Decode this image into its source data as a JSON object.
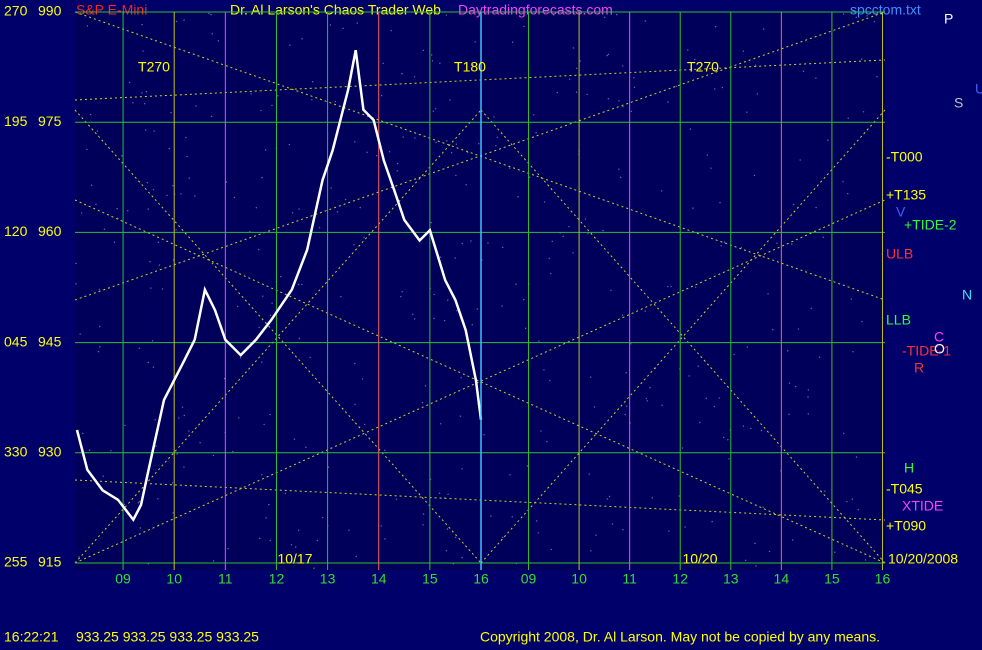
{
  "header": {
    "symbol": "S&P E-Mini",
    "title": "Dr. Al Larson's Chaos Trader Web",
    "site": "Daytradingforecasts.com",
    "file": "spcctom.txt"
  },
  "angle_labels": [
    "255",
    "330",
    "045",
    "120",
    "195",
    "270"
  ],
  "cycle_labels": [
    "T270",
    "T180",
    "T270"
  ],
  "right_labels": [
    "-T000",
    "+T135",
    "+TIDE-2",
    "ULB",
    "LLB",
    "-TIDE-1",
    "H",
    "-T045",
    "XTIDE",
    "+T090"
  ],
  "planet_letters": [
    "P",
    "S",
    "U",
    "N",
    "C",
    "O",
    "R",
    "V"
  ],
  "chart_data": [
    {
      "type": "line",
      "date_label": "10/17",
      "x": [
        8.1,
        8.3,
        8.6,
        8.9,
        9.2,
        9.35,
        9.5,
        9.8,
        10.0,
        10.2,
        10.4,
        10.6,
        10.8,
        11.0,
        11.3,
        11.6,
        11.9,
        12.3,
        12.6,
        12.9,
        13.1,
        13.4,
        13.55,
        13.7,
        13.9,
        14.1,
        14.3,
        14.5,
        14.8,
        15.0,
        15.3,
        15.5,
        15.7,
        15.9,
        16.0
      ],
      "series": [
        {
          "name": "S&P E-Mini",
          "color": "#ffffff",
          "values": [
            933.1,
            927.7,
            924.9,
            923.6,
            920.9,
            922.9,
            927.7,
            937.2,
            939.9,
            942.6,
            945.4,
            952.2,
            949.4,
            945.4,
            943.3,
            945.4,
            948.1,
            952.2,
            957.6,
            967.1,
            971.2,
            979.4,
            984.8,
            976.7,
            975.3,
            969.8,
            965.8,
            961.7,
            958.9,
            960.3,
            953.5,
            950.8,
            946.7,
            939.9,
            934.5
          ]
        }
      ],
      "xlim": [
        8.06,
        16
      ],
      "xticks": [
        {
          "value": 9,
          "label": "09"
        },
        10,
        11,
        12,
        13,
        14,
        15,
        16
      ],
      "ylim": [
        915,
        990
      ],
      "yticks": [
        915,
        930,
        945,
        960,
        975,
        990
      ],
      "grid": true
    },
    {
      "type": "line",
      "date_label": "10/20",
      "xlim": [
        8.06,
        16.05
      ],
      "xticks": [
        {
          "value": 9,
          "label": "09"
        },
        10,
        11,
        12,
        13,
        14,
        15,
        16
      ],
      "end_date": "10/20/2008"
    }
  ],
  "footer": {
    "time": "16:22:21",
    "quote": "933.25 933.25 933.25 933.25",
    "copyright": "Copyright 2008, Dr. Al Larson. May not be copied by any means."
  }
}
